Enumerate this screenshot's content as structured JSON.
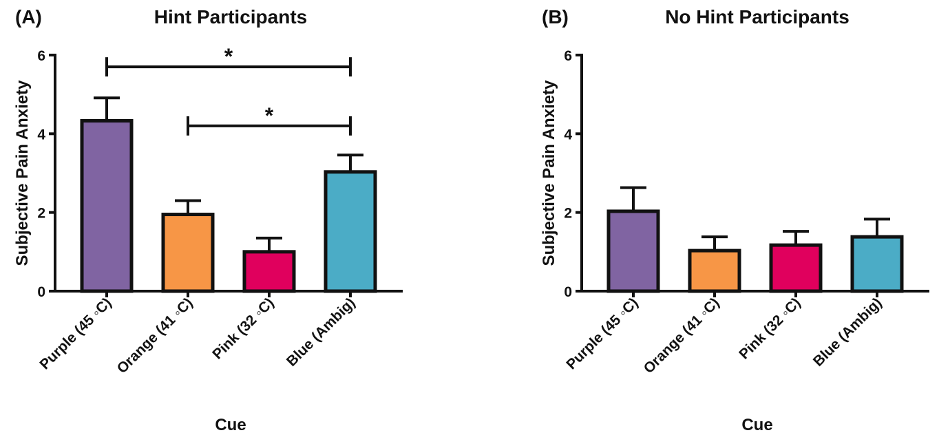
{
  "chart_data": [
    {
      "type": "bar",
      "panel_label": "(A)",
      "title": "Hint Participants",
      "xlabel": "Cue",
      "ylabel": "Subjective Pain Anxiety",
      "ylim": [
        0,
        6
      ],
      "yticks": [
        "0",
        "2",
        "4",
        "6"
      ],
      "categories": [
        "Purple (45 ◦C)",
        "Orange (41 ◦C)",
        "Pink (32 ◦C)",
        "Blue (Ambig)"
      ],
      "values": [
        4.33,
        1.95,
        1.0,
        3.03
      ],
      "errors": [
        0.58,
        0.35,
        0.35,
        0.43
      ],
      "colors": [
        "#8064A2",
        "#F79646",
        "#E0005D",
        "#4BACC6"
      ],
      "significance": [
        {
          "from": 0,
          "to": 3,
          "y": 5.7,
          "label": "*"
        },
        {
          "from": 1,
          "to": 3,
          "y": 4.2,
          "label": "*"
        }
      ]
    },
    {
      "type": "bar",
      "panel_label": "(B)",
      "title": "No Hint Participants",
      "xlabel": "Cue",
      "ylabel": "Subjective Pain Anxiety",
      "ylim": [
        0,
        6
      ],
      "yticks": [
        "0",
        "2",
        "4",
        "6"
      ],
      "categories": [
        "Purple (45 ◦C)",
        "Orange (41 ◦C)",
        "Pink (32 ◦C)",
        "Blue (Ambig)"
      ],
      "values": [
        2.03,
        1.03,
        1.17,
        1.38
      ],
      "errors": [
        0.6,
        0.35,
        0.35,
        0.45
      ],
      "colors": [
        "#8064A2",
        "#F79646",
        "#E0005D",
        "#4BACC6"
      ],
      "significance": []
    }
  ]
}
